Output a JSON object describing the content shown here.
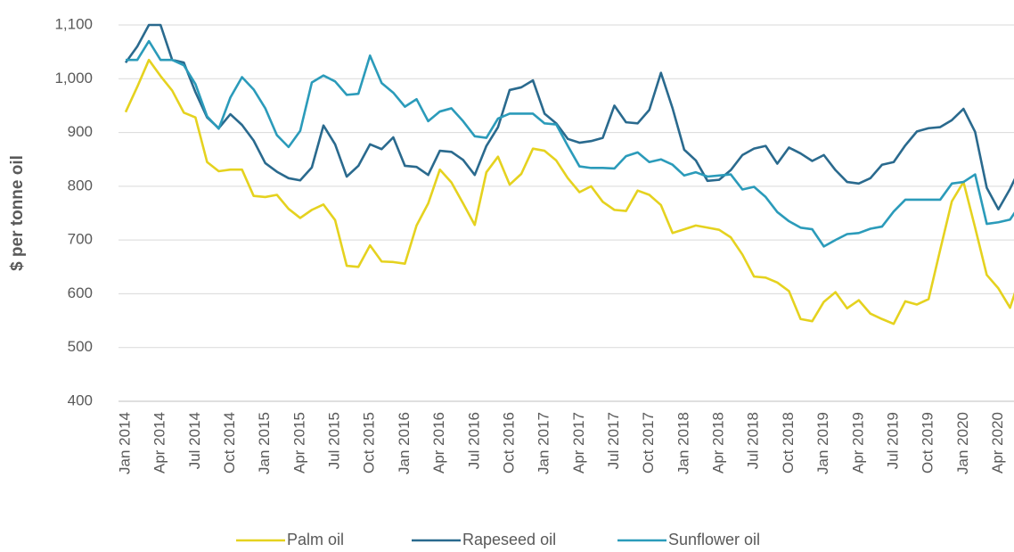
{
  "chart_data": {
    "type": "line",
    "y_label": "$ per tonne oil",
    "categories": [
      "Jan 2014",
      null,
      null,
      "Apr 2014",
      null,
      null,
      "Jul 2014",
      null,
      null,
      "Oct 2014",
      null,
      null,
      "Jan 2015",
      null,
      null,
      "Apr 2015",
      null,
      null,
      "Jul 2015",
      null,
      null,
      "Oct 2015",
      null,
      null,
      "Jan 2016",
      null,
      null,
      "Apr 2016",
      null,
      null,
      "Jul 2016",
      null,
      null,
      "Oct 2016",
      null,
      null,
      "Jan 2017",
      null,
      null,
      "Apr 2017",
      null,
      null,
      "Jul 2017",
      null,
      null,
      "Oct 2017",
      null,
      null,
      "Jan 2018",
      null,
      null,
      "Apr 2018",
      null,
      null,
      "Jul 2018",
      null,
      null,
      "Oct 2018",
      null,
      null,
      "Jan 2019",
      null,
      null,
      "Apr 2019",
      null,
      null,
      "Jul 2019",
      null,
      null,
      "Oct 2019",
      null,
      null,
      "Jan 2020",
      null,
      null,
      "Apr 2020",
      null,
      null
    ],
    "series": [
      {
        "name": "Palm oil",
        "color": "#e5d21f",
        "values": [
          938,
          985,
          1035,
          1005,
          978,
          937,
          928,
          845,
          828,
          831,
          831,
          782,
          780,
          784,
          758,
          741,
          756,
          766,
          737,
          652,
          650,
          690,
          660,
          659,
          656,
          727,
          768,
          831,
          807,
          768,
          728,
          826,
          855,
          803,
          823,
          870,
          866,
          848,
          815,
          789,
          800,
          771,
          756,
          754,
          792,
          784,
          765,
          713,
          720,
          727,
          723,
          719,
          705,
          673,
          632,
          630,
          621,
          605,
          553,
          549,
          585,
          603,
          573,
          588,
          563,
          553,
          544,
          586,
          580,
          590,
          682,
          772,
          808,
          723,
          635,
          610,
          574,
          640
        ]
      },
      {
        "name": "Rapeseed oil",
        "color": "#2a6a8e",
        "values": [
          1030,
          1060,
          1100,
          1100,
          1035,
          1030,
          975,
          928,
          908,
          934,
          914,
          885,
          843,
          827,
          815,
          811,
          835,
          913,
          878,
          818,
          838,
          878,
          869,
          891,
          838,
          836,
          821,
          866,
          864,
          849,
          821,
          875,
          910,
          979,
          984,
          997,
          935,
          917,
          888,
          881,
          884,
          890,
          950,
          919,
          917,
          942,
          1011,
          945,
          868,
          848,
          810,
          812,
          830,
          858,
          870,
          875,
          842,
          872,
          861,
          847,
          858,
          830,
          808,
          805,
          815,
          840,
          845,
          876,
          902,
          908,
          910,
          923,
          944,
          901,
          797,
          757,
          795,
          840
        ]
      },
      {
        "name": "Sunflower oil",
        "color": "#2b9bba",
        "values": [
          1035,
          1035,
          1070,
          1035,
          1035,
          1025,
          990,
          930,
          907,
          965,
          1003,
          980,
          945,
          895,
          873,
          903,
          993,
          1006,
          995,
          970,
          972,
          1043,
          992,
          974,
          948,
          962,
          921,
          939,
          945,
          921,
          893,
          890,
          926,
          935,
          935,
          935,
          917,
          915,
          875,
          837,
          834,
          834,
          833,
          856,
          863,
          845,
          850,
          840,
          820,
          826,
          818,
          820,
          822,
          794,
          799,
          780,
          752,
          735,
          723,
          720,
          688,
          700,
          711,
          713,
          721,
          725,
          753,
          775,
          775,
          775,
          775,
          805,
          808,
          822,
          730,
          733,
          738,
          770
        ]
      }
    ],
    "ylim": [
      400,
      1100
    ],
    "yticks": [
      400,
      500,
      600,
      700,
      800,
      900,
      {
        "value": 1000,
        "label": "1,000"
      },
      {
        "value": 1100,
        "label": "1,100"
      }
    ],
    "grid": true,
    "legend": "bottom"
  }
}
